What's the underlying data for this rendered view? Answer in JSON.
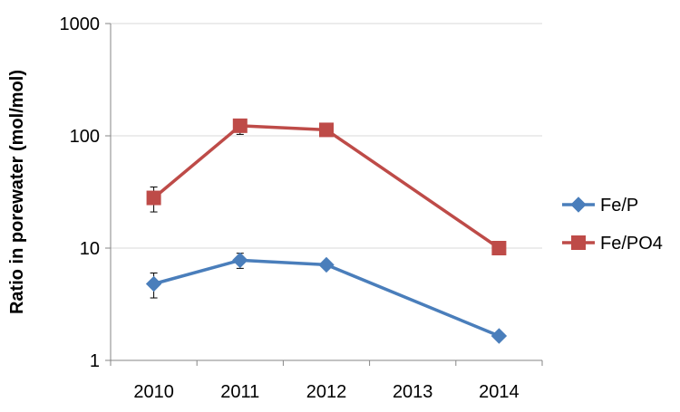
{
  "chart_data": {
    "type": "line",
    "title": "",
    "xlabel": "",
    "ylabel": "Ratio in porewater (mol/mol)",
    "yscale": "log",
    "ylim": [
      1,
      1000
    ],
    "y_ticks": [
      {
        "value": 1,
        "label": "1"
      },
      {
        "value": 10,
        "label": "10"
      },
      {
        "value": 100,
        "label": "100"
      },
      {
        "value": 1000,
        "label": "1000"
      }
    ],
    "categories": [
      "2010",
      "2011",
      "2012",
      "2013",
      "2014"
    ],
    "grid": "horizontal",
    "legend_position": "right",
    "series": [
      {
        "name": "Fe/P",
        "color": "#4a7ebb",
        "marker": "diamond",
        "points": [
          {
            "x": "2010",
            "y": 4.8,
            "err_low": 3.6,
            "err_high": 6.0
          },
          {
            "x": "2011",
            "y": 7.8,
            "err_low": 6.6,
            "err_high": 9.0
          },
          {
            "x": "2012",
            "y": 7.1
          },
          {
            "x": "2014",
            "y": 1.65
          }
        ]
      },
      {
        "name": "Fe/PO4",
        "color": "#be4b48",
        "marker": "square",
        "points": [
          {
            "x": "2010",
            "y": 28,
            "err_low": 21,
            "err_high": 35
          },
          {
            "x": "2011",
            "y": 123,
            "err_low": 103,
            "err_high": 135
          },
          {
            "x": "2012",
            "y": 113
          },
          {
            "x": "2014",
            "y": 10
          }
        ]
      }
    ]
  }
}
